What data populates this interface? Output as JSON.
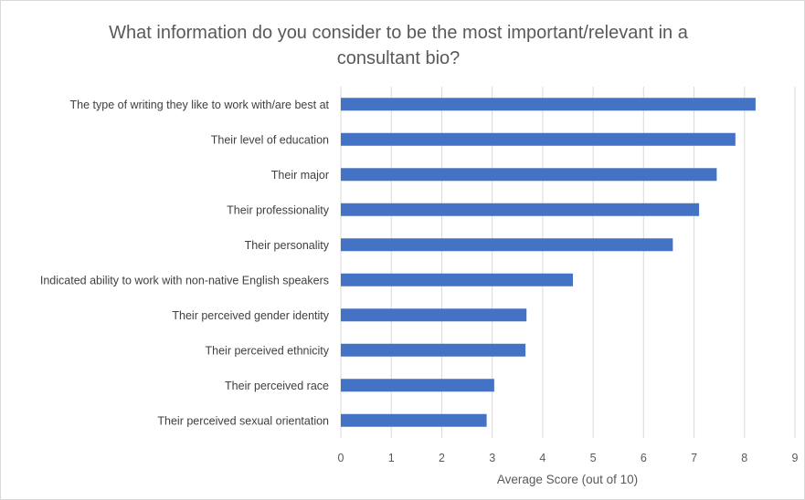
{
  "chart_data": {
    "type": "bar",
    "orientation": "horizontal",
    "title_lines": [
      "What information do you consider to be the most important/relevant in a",
      "consultant bio?"
    ],
    "xlabel": "Average Score (out of 10)",
    "ylabel": "",
    "xlim": [
      0,
      9
    ],
    "xticks": [
      0,
      1,
      2,
      3,
      4,
      5,
      6,
      7,
      8,
      9
    ],
    "grid": true,
    "legend": "none",
    "categories": [
      "The type of writing they like to work with/are best at",
      "Their level of education",
      "Their major",
      "Their professionality",
      "Their personality",
      "Indicated ability to work with non-native English speakers",
      "Their perceived gender identity",
      "Their perceived ethnicity",
      "Their perceived race",
      "Their perceived sexual orientation"
    ],
    "values": [
      8.22,
      7.82,
      7.45,
      7.1,
      6.58,
      4.6,
      3.68,
      3.66,
      3.04,
      2.89
    ],
    "colors": {
      "bar": "#4472C4",
      "grid": "#d9d9d9",
      "text": "#595959"
    }
  }
}
